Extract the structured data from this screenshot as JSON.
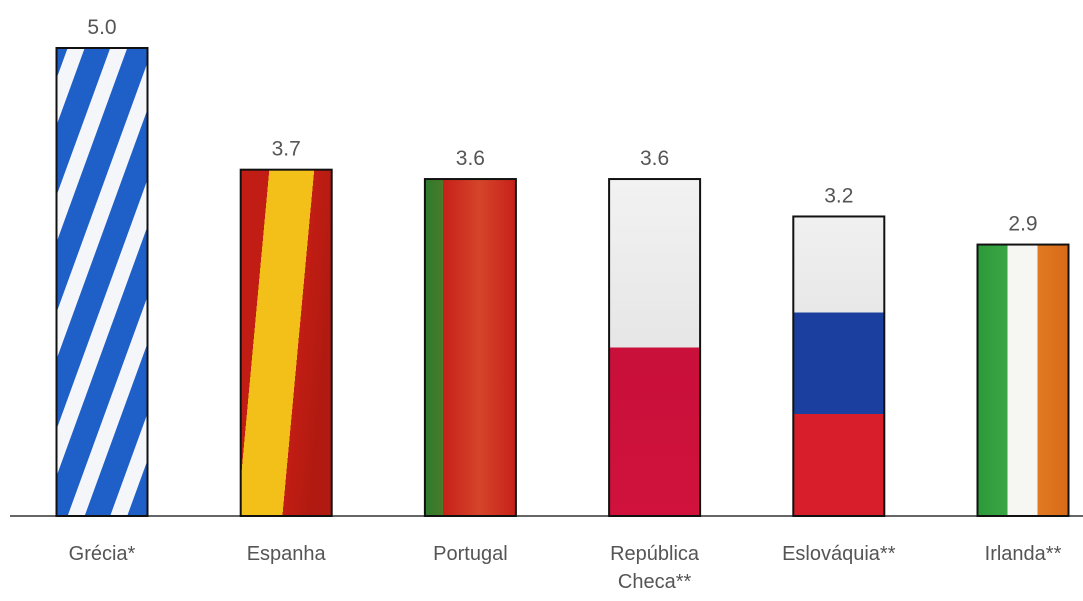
{
  "chart_data": {
    "type": "bar",
    "categories": [
      "Grécia*",
      "Espanha",
      "Portugal",
      "República Checa**",
      "Eslováquia**",
      "Irlanda**"
    ],
    "values": [
      5,
      3.7,
      3.6,
      3.6,
      3.2,
      2.9
    ],
    "value_labels": [
      "5.0",
      "3.7",
      "3.6",
      "3.6",
      "3.2",
      "2.9"
    ]
  }
}
